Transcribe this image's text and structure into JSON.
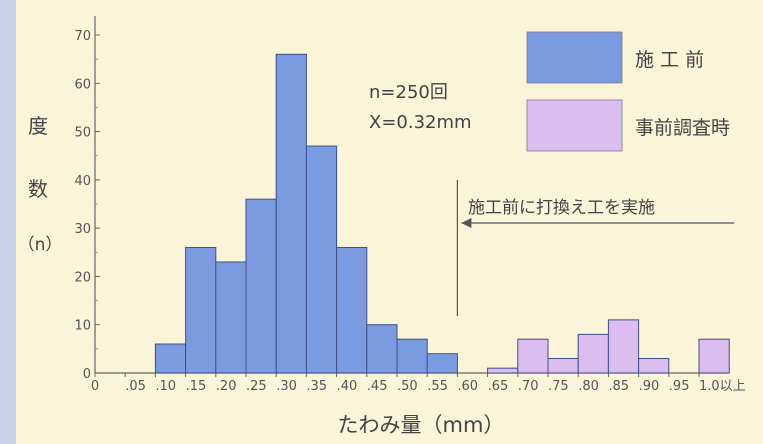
{
  "chart_data": {
    "type": "bar",
    "title": "",
    "xlabel": "たわみ量（mm）",
    "ylabel_chars": [
      "度",
      "数",
      "（n）"
    ],
    "ylim": [
      0,
      70
    ],
    "yticks": [
      0,
      10,
      20,
      30,
      40,
      50,
      60,
      70
    ],
    "x_tick_labels": [
      "0",
      ".05",
      ".10",
      ".15",
      ".20",
      ".25",
      ".30",
      ".35",
      ".40",
      ".45",
      ".50",
      ".55",
      ".60",
      ".65",
      ".70",
      ".75",
      ".80",
      ".85",
      ".90",
      ".95",
      "1.0以上"
    ],
    "series": [
      {
        "name": "施 工 前",
        "color": "#7b9be0",
        "bins": [
          {
            "start": 0.1,
            "value": 6
          },
          {
            "start": 0.15,
            "value": 26
          },
          {
            "start": 0.2,
            "value": 23
          },
          {
            "start": 0.25,
            "value": 36
          },
          {
            "start": 0.3,
            "value": 66
          },
          {
            "start": 0.35,
            "value": 47
          },
          {
            "start": 0.4,
            "value": 26
          },
          {
            "start": 0.45,
            "value": 10
          },
          {
            "start": 0.5,
            "value": 7
          },
          {
            "start": 0.55,
            "value": 4
          }
        ]
      },
      {
        "name": "事前調査時",
        "color": "#dcbdf0",
        "bins": [
          {
            "start": 0.65,
            "value": 1
          },
          {
            "start": 0.7,
            "value": 7
          },
          {
            "start": 0.75,
            "value": 3
          },
          {
            "start": 0.8,
            "value": 8
          },
          {
            "start": 0.85,
            "value": 11
          },
          {
            "start": 0.9,
            "value": 3
          },
          {
            "start": 1.0,
            "value": 7
          }
        ]
      }
    ],
    "stats": {
      "n": "n=250回",
      "mean": "X=0.32mm"
    },
    "annotation": "施工前に打換え工を実施",
    "annotation_x": 0.61,
    "legend_position": "top-right"
  }
}
